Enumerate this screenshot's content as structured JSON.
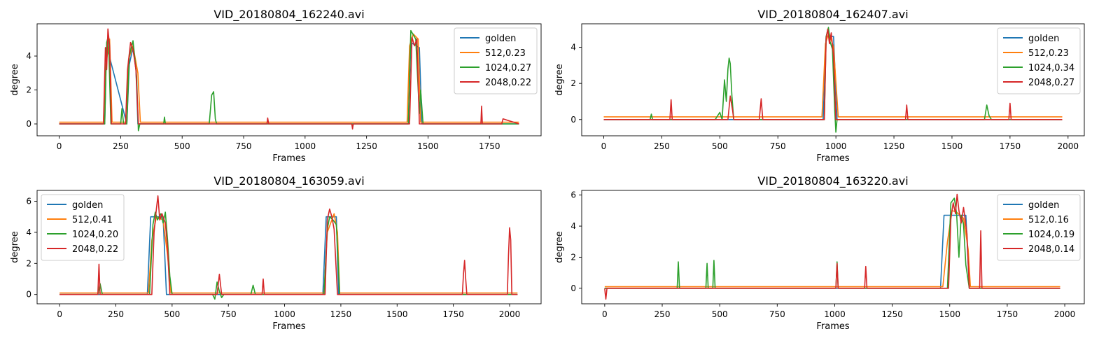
{
  "colors": {
    "golden": "#1f77b4",
    "s512": "#ff7f0e",
    "s1024": "#2ca02c",
    "s2048": "#d62728"
  },
  "chart_data": [
    {
      "type": "line",
      "title": "VID_20180804_162240.avi",
      "xlabel": "Frames",
      "ylabel": "degree",
      "xlim": [
        -90,
        1960
      ],
      "ylim": [
        -0.7,
        5.9
      ],
      "xticks": [
        0,
        250,
        500,
        750,
        1000,
        1250,
        1500,
        1750
      ],
      "yticks": [
        0,
        2,
        4
      ],
      "legend": "top-right",
      "series": [
        {
          "name": "golden",
          "color": "#1f77b4",
          "x": [
            0,
            185,
            192,
            200,
            275,
            285,
            300,
            312,
            320,
            1420,
            1430,
            1465,
            1475,
            1870
          ],
          "y": [
            0,
            0,
            4.5,
            4.2,
            0,
            3.5,
            4.5,
            3.2,
            0,
            0,
            4.8,
            4.5,
            0,
            0
          ]
        },
        {
          "name": "512,0.23",
          "color": "#ff7f0e",
          "x": [
            0,
            180,
            190,
            205,
            215,
            275,
            282,
            300,
            320,
            330,
            1415,
            1425,
            1440,
            1460,
            1470,
            1870
          ],
          "y": [
            0.1,
            0.1,
            3.5,
            5.0,
            0.1,
            0.1,
            3.8,
            4.6,
            3.0,
            0.1,
            0.1,
            4.6,
            5.3,
            5.0,
            0.1,
            0.1
          ]
        },
        {
          "name": "1024,0.27",
          "color": "#2ca02c",
          "x": [
            0,
            185,
            193,
            200,
            210,
            250,
            255,
            262,
            275,
            285,
            300,
            315,
            322,
            328,
            425,
            428,
            432,
            610,
            620,
            628,
            635,
            640,
            1420,
            1430,
            1450,
            1465,
            1470,
            1480,
            1870
          ],
          "y": [
            0,
            0,
            4.8,
            5.2,
            0,
            0,
            0.9,
            0,
            0,
            4.0,
            4.9,
            2.8,
            -0.4,
            0,
            0,
            0.4,
            0,
            0,
            1.7,
            1.9,
            0.3,
            0,
            0,
            5.5,
            5.0,
            0.6,
            2.0,
            0,
            0
          ]
        },
        {
          "name": "2048,0.22",
          "color": "#d62728",
          "x": [
            0,
            180,
            188,
            193,
            198,
            205,
            212,
            270,
            278,
            290,
            300,
            312,
            322,
            845,
            848,
            852,
            1190,
            1193,
            1196,
            1425,
            1435,
            1445,
            1455,
            1465,
            1715,
            1718,
            1721,
            1800,
            1805,
            1870
          ],
          "y": [
            0,
            0,
            4.5,
            3.2,
            5.6,
            4.6,
            0,
            0,
            3.2,
            4.8,
            4.4,
            3.2,
            0,
            0,
            0.35,
            0,
            0,
            -0.3,
            0,
            0,
            5.1,
            4.6,
            5.0,
            0,
            0,
            1.05,
            0,
            0,
            0.3,
            0
          ]
        }
      ]
    },
    {
      "type": "line",
      "title": "VID_20180804_162407.avi",
      "xlabel": "Frames",
      "ylabel": "degree",
      "xlim": [
        -95,
        2070
      ],
      "ylim": [
        -0.9,
        5.3
      ],
      "xticks": [
        0,
        250,
        500,
        750,
        1000,
        1250,
        1500,
        1750,
        2000
      ],
      "yticks": [
        0,
        2,
        4
      ],
      "legend": "top-right",
      "series": [
        {
          "name": "golden",
          "color": "#1f77b4",
          "x": [
            0,
            945,
            958,
            990,
            1005,
            1975
          ],
          "y": [
            0,
            0,
            4.6,
            4.6,
            0,
            0
          ]
        },
        {
          "name": "512,0.23",
          "color": "#ff7f0e",
          "x": [
            0,
            940,
            955,
            970,
            990,
            1010,
            1975
          ],
          "y": [
            0.15,
            0.15,
            4.2,
            4.8,
            4.0,
            0.15,
            0.15
          ]
        },
        {
          "name": "1024,0.34",
          "color": "#2ca02c",
          "x": [
            0,
            200,
            205,
            210,
            480,
            500,
            510,
            520,
            528,
            535,
            540,
            545,
            552,
            560,
            565,
            950,
            958,
            968,
            975,
            985,
            995,
            1000,
            1005,
            1010,
            1640,
            1650,
            1660,
            1670,
            1975
          ],
          "y": [
            0,
            0,
            0.3,
            0,
            0,
            0.4,
            0,
            2.2,
            1.0,
            2.8,
            3.4,
            3.1,
            1.3,
            0,
            0,
            0,
            4.6,
            5.1,
            4.3,
            3.9,
            0.5,
            -0.7,
            0,
            0,
            0,
            0.8,
            0.2,
            0,
            0
          ]
        },
        {
          "name": "2048,0.27",
          "color": "#d62728",
          "x": [
            0,
            285,
            290,
            295,
            535,
            545,
            555,
            560,
            670,
            678,
            685,
            950,
            958,
            965,
            972,
            980,
            990,
            1000,
            1300,
            1305,
            1310,
            1745,
            1750,
            1755,
            1975
          ],
          "y": [
            0,
            0,
            1.1,
            0,
            0,
            1.3,
            0.5,
            0,
            0,
            1.15,
            0,
            0,
            4.5,
            5.0,
            4.2,
            4.8,
            3.5,
            0,
            0,
            0.8,
            0,
            0,
            0.9,
            0,
            0
          ]
        }
      ]
    },
    {
      "type": "line",
      "title": "VID_20180804_163059.avi",
      "xlabel": "Frames",
      "ylabel": "degree",
      "xlim": [
        -100,
        2140
      ],
      "ylim": [
        -0.6,
        6.7
      ],
      "xticks": [
        0,
        250,
        500,
        750,
        1000,
        1250,
        1500,
        1750,
        2000
      ],
      "yticks": [
        0,
        2,
        4,
        6
      ],
      "legend": "top-left",
      "series": [
        {
          "name": "golden",
          "color": "#1f77b4",
          "x": [
            0,
            390,
            405,
            460,
            475,
            1170,
            1185,
            1230,
            1240,
            2035
          ],
          "y": [
            0,
            0,
            5.0,
            5.0,
            0,
            0,
            5.0,
            5.0,
            0,
            0
          ]
        },
        {
          "name": "512,0.41",
          "color": "#ff7f0e",
          "x": [
            0,
            395,
            410,
            430,
            460,
            480,
            495,
            1175,
            1190,
            1220,
            1235,
            1245,
            2035
          ],
          "y": [
            0.1,
            0.1,
            3.5,
            5.0,
            4.8,
            2.5,
            0.1,
            0.1,
            4.0,
            5.2,
            4.0,
            0.1,
            0.1
          ]
        },
        {
          "name": "1024,0.20",
          "color": "#2ca02c",
          "x": [
            0,
            170,
            180,
            190,
            400,
            415,
            425,
            435,
            450,
            460,
            470,
            480,
            490,
            500,
            680,
            690,
            700,
            710,
            720,
            730,
            850,
            860,
            870,
            1175,
            1190,
            1200,
            1215,
            1230,
            1245,
            2035
          ],
          "y": [
            0,
            0,
            0.7,
            0,
            0,
            4.5,
            5.3,
            4.8,
            5.2,
            4.6,
            5.3,
            3.5,
            1.2,
            0,
            0,
            -0.3,
            0.8,
            0.2,
            -0.2,
            0,
            0,
            0.6,
            0,
            0,
            4.2,
            5.0,
            4.8,
            4.5,
            0,
            0
          ]
        },
        {
          "name": "2048,0.22",
          "color": "#d62728",
          "x": [
            0,
            170,
            175,
            180,
            410,
            420,
            430,
            437,
            445,
            455,
            470,
            480,
            490,
            700,
            710,
            720,
            900,
            905,
            910,
            1180,
            1190,
            1200,
            1210,
            1220,
            1235,
            1790,
            1795,
            1800,
            1805,
            1810,
            1990,
            1995,
            2000,
            2005,
            2010,
            2035
          ],
          "y": [
            0,
            0,
            1.95,
            0,
            0,
            4.0,
            5.5,
            6.35,
            4.8,
            5.2,
            4.6,
            3.0,
            0,
            0,
            1.3,
            0,
            0,
            1.0,
            0,
            0,
            4.8,
            5.5,
            5.0,
            4.2,
            0,
            0,
            1.3,
            2.2,
            1.0,
            0,
            0,
            2.5,
            4.3,
            3.5,
            0,
            0
          ]
        }
      ]
    },
    {
      "type": "line",
      "title": "VID_20180804_163220.avi",
      "xlabel": "Frames",
      "ylabel": "degree",
      "xlim": [
        -100,
        2085
      ],
      "ylim": [
        -1.0,
        6.3
      ],
      "xticks": [
        0,
        250,
        500,
        750,
        1000,
        1250,
        1500,
        1750,
        2000
      ],
      "yticks": [
        0,
        2,
        4,
        6
      ],
      "legend": "top-right",
      "series": [
        {
          "name": "golden",
          "color": "#1f77b4",
          "x": [
            0,
            1460,
            1475,
            1570,
            1585,
            1980
          ],
          "y": [
            0,
            0,
            4.7,
            4.7,
            0,
            0
          ]
        },
        {
          "name": "512,0.16",
          "color": "#ff7f0e",
          "x": [
            0,
            1470,
            1490,
            1510,
            1530,
            1560,
            1580,
            1590,
            1980
          ],
          "y": [
            0.1,
            0.1,
            3.0,
            5.0,
            4.9,
            4.5,
            2.5,
            0.1,
            0.1
          ]
        },
        {
          "name": "1024,0.19",
          "color": "#2ca02c",
          "x": [
            0,
            315,
            320,
            325,
            440,
            445,
            450,
            470,
            475,
            480,
            1005,
            1010,
            1015,
            1490,
            1505,
            1520,
            1530,
            1540,
            1550,
            1560,
            1570,
            1585,
            1980
          ],
          "y": [
            0,
            0,
            1.7,
            0,
            0,
            1.6,
            0,
            0,
            1.8,
            0,
            0,
            1.7,
            0,
            0,
            5.5,
            5.8,
            4.8,
            2.0,
            4.7,
            4.1,
            1.5,
            0,
            0
          ]
        },
        {
          "name": "2048,0.14",
          "color": "#d62728",
          "x": [
            0,
            2,
            5,
            10,
            1005,
            1010,
            1015,
            1130,
            1135,
            1140,
            1495,
            1505,
            1515,
            1525,
            1532,
            1540,
            1550,
            1560,
            1575,
            1585,
            1630,
            1635,
            1640,
            1980
          ],
          "y": [
            0,
            -0.3,
            -0.7,
            0,
            0,
            1.6,
            0,
            0,
            1.4,
            0,
            0,
            4.5,
            5.5,
            4.8,
            6.05,
            5.0,
            4.2,
            5.2,
            3.5,
            0,
            0,
            3.7,
            0,
            0
          ]
        }
      ]
    }
  ]
}
